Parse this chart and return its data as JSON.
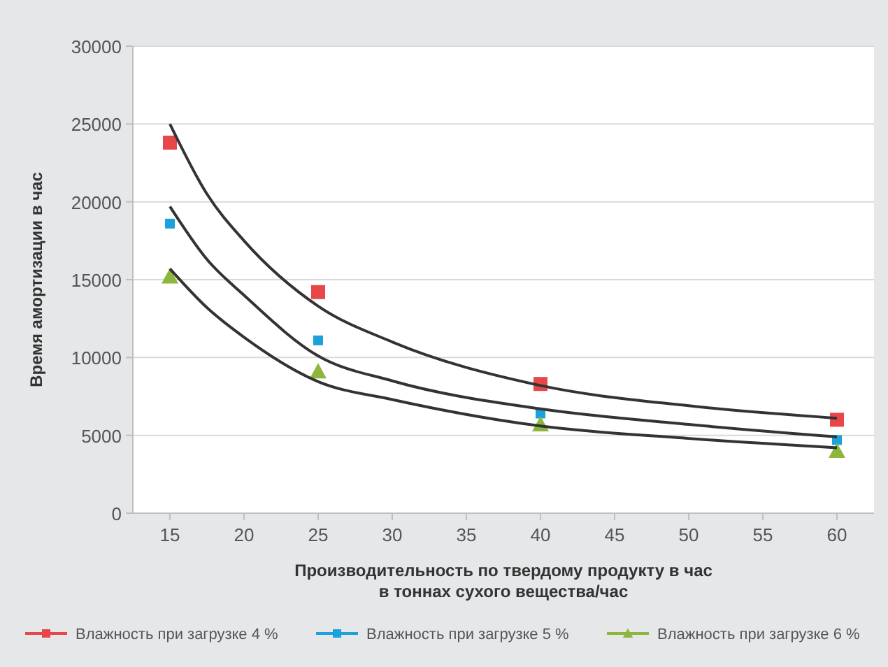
{
  "chart_data": {
    "type": "scatter",
    "xlabel": "Производительность по твердому продукту в час\nв тоннах сухого вещества/час",
    "ylabel": "Время амортизации в час",
    "xlim": [
      12.5,
      62.5
    ],
    "xticks": [
      15,
      20,
      25,
      30,
      35,
      40,
      45,
      50,
      55,
      60
    ],
    "ylim": [
      0,
      30000
    ],
    "yticks": [
      0,
      5000,
      10000,
      15000,
      20000,
      25000,
      30000
    ],
    "grid": "y",
    "legend": "bottom",
    "series": [
      {
        "name": "Влажность при загрузке 4 %",
        "color": "#e8474a",
        "marker": "square",
        "x": [
          15,
          25,
          40,
          60
        ],
        "values": [
          23800,
          14200,
          8300,
          6000
        ]
      },
      {
        "name": "Влажность при загрузке 5 %",
        "color": "#1ba1dc",
        "marker": "square",
        "x": [
          15,
          25,
          40,
          60
        ],
        "values": [
          18600,
          11100,
          6400,
          4700
        ]
      },
      {
        "name": "Влажность при загрузке 6 %",
        "color": "#8db63c",
        "marker": "triangle",
        "x": [
          15,
          25,
          40,
          60
        ],
        "values": [
          15200,
          9100,
          5700,
          4000
        ]
      },
      {
        "type": "line",
        "color": "#333333",
        "marker": "none",
        "x": [
          15,
          17.5,
          20,
          25,
          30,
          40,
          50,
          60
        ],
        "values": [
          25000,
          20500,
          17500,
          13300,
          11000,
          8200,
          6900,
          6100
        ]
      },
      {
        "type": "line",
        "color": "#333333",
        "marker": "none",
        "x": [
          15,
          17.5,
          20,
          25,
          30,
          40,
          50,
          60
        ],
        "values": [
          19700,
          16300,
          14000,
          10100,
          8500,
          6700,
          5700,
          4900
        ]
      },
      {
        "type": "line",
        "color": "#333333",
        "marker": "none",
        "x": [
          15,
          17.5,
          20,
          25,
          30,
          40,
          50,
          60
        ],
        "values": [
          15700,
          13200,
          11300,
          8450,
          7300,
          5600,
          4800,
          4200
        ]
      }
    ]
  }
}
